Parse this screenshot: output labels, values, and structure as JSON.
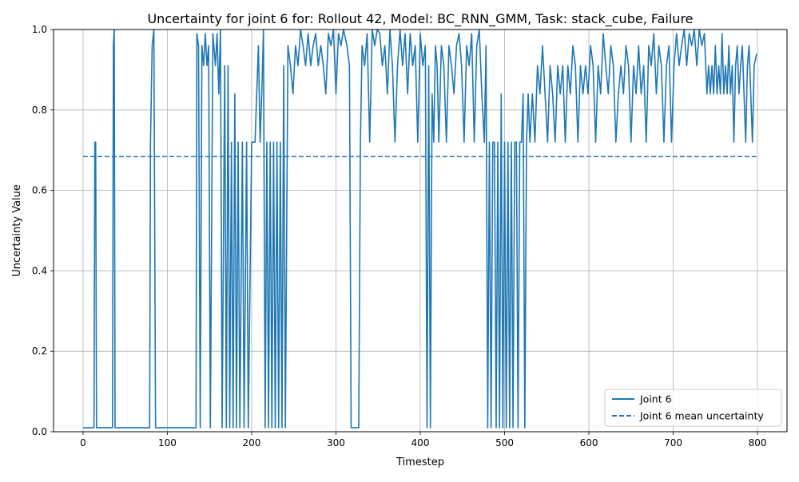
{
  "chart_data": {
    "type": "line",
    "title": "Uncertainty for joint 6 for: Rollout 42, Model: BC_RNN_GMM, Task: stack_cube, Failure",
    "xlabel": "Timestep",
    "ylabel": "Uncertainty Value",
    "xlim": [
      -35,
      835
    ],
    "ylim": [
      0.0,
      1.0
    ],
    "xticks": [
      "0",
      "100",
      "200",
      "300",
      "400",
      "500",
      "600",
      "700",
      "800"
    ],
    "yticks": [
      "0.0",
      "0.2",
      "0.4",
      "0.6",
      "0.8",
      "1.0"
    ],
    "grid": true,
    "legend_position": "lower-right",
    "series": [
      {
        "name": "Joint 6",
        "style": "solid",
        "color": "#1f77b4",
        "points": [
          [
            0,
            0.01
          ],
          [
            13,
            0.01
          ],
          [
            14,
            0.72
          ],
          [
            15,
            0.72
          ],
          [
            16,
            0.01
          ],
          [
            35,
            0.01
          ],
          [
            36,
            0.96
          ],
          [
            37,
            1.0
          ],
          [
            38,
            0.01
          ],
          [
            79,
            0.01
          ],
          [
            80,
            0.72
          ],
          [
            82,
            0.96
          ],
          [
            84,
            1.0
          ],
          [
            86,
            0.01
          ],
          [
            134,
            0.01
          ],
          [
            135,
            0.99
          ],
          [
            137,
            0.96
          ],
          [
            139,
            0.01
          ],
          [
            141,
            0.96
          ],
          [
            143,
            0.91
          ],
          [
            145,
            0.99
          ],
          [
            147,
            0.91
          ],
          [
            149,
            0.96
          ],
          [
            151,
            0.01
          ],
          [
            154,
            0.99
          ],
          [
            157,
            0.91
          ],
          [
            159,
            0.99
          ],
          [
            161,
            0.84
          ],
          [
            163,
            1.0
          ],
          [
            165,
            0.01
          ],
          [
            168,
            0.91
          ],
          [
            170,
            0.01
          ],
          [
            172,
            0.91
          ],
          [
            174,
            0.01
          ],
          [
            176,
            0.72
          ],
          [
            178,
            0.01
          ],
          [
            180,
            0.84
          ],
          [
            182,
            0.01
          ],
          [
            184,
            0.72
          ],
          [
            186,
            0.01
          ],
          [
            189,
            0.72
          ],
          [
            191,
            0.01
          ],
          [
            194,
            0.72
          ],
          [
            196,
            0.01
          ],
          [
            200,
            0.72
          ],
          [
            204,
            0.72
          ],
          [
            206,
            0.84
          ],
          [
            208,
            0.96
          ],
          [
            210,
            0.72
          ],
          [
            212,
            0.84
          ],
          [
            214,
            1.0
          ],
          [
            216,
            0.01
          ],
          [
            218,
            0.72
          ],
          [
            220,
            0.01
          ],
          [
            222,
            0.72
          ],
          [
            224,
            0.01
          ],
          [
            226,
            0.72
          ],
          [
            228,
            0.01
          ],
          [
            230,
            0.72
          ],
          [
            232,
            0.01
          ],
          [
            234,
            0.72
          ],
          [
            236,
            0.01
          ],
          [
            238,
            0.91
          ],
          [
            240,
            0.01
          ],
          [
            243,
            0.96
          ],
          [
            246,
            0.91
          ],
          [
            249,
            0.84
          ],
          [
            252,
            0.96
          ],
          [
            255,
            0.91
          ],
          [
            258,
            1.0
          ],
          [
            261,
            0.96
          ],
          [
            264,
            0.91
          ],
          [
            267,
            0.99
          ],
          [
            270,
            0.91
          ],
          [
            273,
            0.96
          ],
          [
            276,
            0.99
          ],
          [
            279,
            0.91
          ],
          [
            282,
            0.96
          ],
          [
            285,
            0.91
          ],
          [
            288,
            0.84
          ],
          [
            291,
            0.99
          ],
          [
            294,
            0.96
          ],
          [
            297,
            1.0
          ],
          [
            300,
            0.84
          ],
          [
            303,
            0.99
          ],
          [
            306,
            0.96
          ],
          [
            309,
            1.0
          ],
          [
            313,
            0.96
          ],
          [
            316,
            0.91
          ],
          [
            318,
            0.01
          ],
          [
            327,
            0.01
          ],
          [
            329,
            0.72
          ],
          [
            331,
            0.96
          ],
          [
            334,
            0.91
          ],
          [
            337,
            0.99
          ],
          [
            340,
            0.72
          ],
          [
            343,
            1.0
          ],
          [
            346,
            0.96
          ],
          [
            349,
            1.0
          ],
          [
            352,
            0.99
          ],
          [
            355,
            0.91
          ],
          [
            358,
            0.96
          ],
          [
            361,
            0.84
          ],
          [
            364,
            1.0
          ],
          [
            367,
            0.91
          ],
          [
            370,
            0.72
          ],
          [
            373,
            0.91
          ],
          [
            376,
            1.0
          ],
          [
            379,
            0.91
          ],
          [
            382,
            0.99
          ],
          [
            385,
            0.84
          ],
          [
            388,
            0.99
          ],
          [
            391,
            0.91
          ],
          [
            394,
            0.96
          ],
          [
            397,
            0.72
          ],
          [
            400,
            0.99
          ],
          [
            403,
            0.91
          ],
          [
            406,
            0.96
          ],
          [
            408,
            0.01
          ],
          [
            410,
            0.91
          ],
          [
            412,
            0.01
          ],
          [
            414,
            0.84
          ],
          [
            416,
            0.72
          ],
          [
            418,
            0.96
          ],
          [
            420,
            0.91
          ],
          [
            422,
            0.72
          ],
          [
            425,
            0.96
          ],
          [
            428,
            0.91
          ],
          [
            431,
            0.72
          ],
          [
            434,
            0.96
          ],
          [
            437,
            0.91
          ],
          [
            440,
            0.84
          ],
          [
            443,
            0.96
          ],
          [
            446,
            0.99
          ],
          [
            449,
            0.91
          ],
          [
            452,
            0.72
          ],
          [
            455,
            0.96
          ],
          [
            458,
            0.91
          ],
          [
            461,
            0.99
          ],
          [
            464,
            0.72
          ],
          [
            467,
            0.96
          ],
          [
            470,
            1.0
          ],
          [
            473,
            0.84
          ],
          [
            476,
            0.72
          ],
          [
            478,
            0.96
          ],
          [
            480,
            0.01
          ],
          [
            482,
            0.72
          ],
          [
            484,
            0.01
          ],
          [
            486,
            0.72
          ],
          [
            488,
            0.72
          ],
          [
            490,
            0.01
          ],
          [
            492,
            0.72
          ],
          [
            494,
            0.01
          ],
          [
            496,
            0.84
          ],
          [
            498,
            0.01
          ],
          [
            500,
            0.72
          ],
          [
            502,
            0.01
          ],
          [
            504,
            0.72
          ],
          [
            506,
            0.01
          ],
          [
            508,
            0.72
          ],
          [
            510,
            0.01
          ],
          [
            512,
            0.72
          ],
          [
            514,
            0.72
          ],
          [
            516,
            0.01
          ],
          [
            518,
            0.72
          ],
          [
            520,
            0.72
          ],
          [
            522,
            0.84
          ],
          [
            524,
            0.01
          ],
          [
            526,
            0.72
          ],
          [
            528,
            0.84
          ],
          [
            530,
            0.72
          ],
          [
            533,
            0.84
          ],
          [
            536,
            0.72
          ],
          [
            539,
            0.91
          ],
          [
            542,
            0.84
          ],
          [
            545,
            0.96
          ],
          [
            548,
            0.84
          ],
          [
            551,
            0.72
          ],
          [
            554,
            0.91
          ],
          [
            557,
            0.84
          ],
          [
            560,
            0.72
          ],
          [
            563,
            0.91
          ],
          [
            566,
            0.84
          ],
          [
            569,
            0.91
          ],
          [
            572,
            0.72
          ],
          [
            575,
            0.91
          ],
          [
            578,
            0.84
          ],
          [
            581,
            0.96
          ],
          [
            584,
            0.91
          ],
          [
            587,
            0.72
          ],
          [
            590,
            0.91
          ],
          [
            593,
            0.84
          ],
          [
            596,
            0.91
          ],
          [
            599,
            0.84
          ],
          [
            602,
            0.96
          ],
          [
            605,
            0.91
          ],
          [
            608,
            0.72
          ],
          [
            611,
            0.91
          ],
          [
            614,
            0.84
          ],
          [
            617,
            0.99
          ],
          [
            620,
            0.91
          ],
          [
            623,
            0.84
          ],
          [
            626,
            0.96
          ],
          [
            629,
            0.91
          ],
          [
            632,
            0.72
          ],
          [
            635,
            0.84
          ],
          [
            638,
            0.91
          ],
          [
            641,
            0.84
          ],
          [
            644,
            0.96
          ],
          [
            647,
            0.91
          ],
          [
            650,
            0.72
          ],
          [
            653,
            0.91
          ],
          [
            656,
            0.84
          ],
          [
            659,
            0.96
          ],
          [
            662,
            0.84
          ],
          [
            665,
            0.91
          ],
          [
            668,
            0.72
          ],
          [
            671,
            0.96
          ],
          [
            674,
            0.91
          ],
          [
            677,
            0.99
          ],
          [
            680,
            0.84
          ],
          [
            683,
            0.96
          ],
          [
            686,
            0.91
          ],
          [
            689,
            0.72
          ],
          [
            692,
            0.91
          ],
          [
            695,
            0.96
          ],
          [
            698,
            0.72
          ],
          [
            701,
            0.91
          ],
          [
            704,
            0.99
          ],
          [
            707,
            0.91
          ],
          [
            710,
            0.96
          ],
          [
            713,
            1.0
          ],
          [
            716,
            0.91
          ],
          [
            719,
            0.99
          ],
          [
            722,
            0.96
          ],
          [
            725,
            1.0
          ],
          [
            728,
            0.91
          ],
          [
            731,
            1.0
          ],
          [
            734,
            0.96
          ],
          [
            737,
            0.99
          ],
          [
            740,
            0.84
          ],
          [
            742,
            0.91
          ],
          [
            744,
            0.84
          ],
          [
            746,
            0.91
          ],
          [
            748,
            0.84
          ],
          [
            750,
            0.96
          ],
          [
            752,
            0.84
          ],
          [
            754,
            0.91
          ],
          [
            756,
            0.84
          ],
          [
            758,
            0.99
          ],
          [
            760,
            0.84
          ],
          [
            762,
            0.91
          ],
          [
            764,
            0.84
          ],
          [
            766,
            0.96
          ],
          [
            768,
            0.84
          ],
          [
            770,
            0.91
          ],
          [
            772,
            0.72
          ],
          [
            774,
            0.91
          ],
          [
            776,
            0.96
          ],
          [
            778,
            0.84
          ],
          [
            780,
            0.91
          ],
          [
            782,
            0.96
          ],
          [
            784,
            0.84
          ],
          [
            786,
            0.72
          ],
          [
            788,
            0.91
          ],
          [
            790,
            0.96
          ],
          [
            792,
            0.84
          ],
          [
            794,
            0.72
          ],
          [
            796,
            0.91
          ],
          [
            799,
            0.94
          ]
        ]
      },
      {
        "name": "Joint 6 mean uncertainty",
        "style": "dashed",
        "color": "#1f77b4",
        "points": [
          [
            0,
            0.684
          ],
          [
            799,
            0.684
          ]
        ]
      }
    ]
  }
}
